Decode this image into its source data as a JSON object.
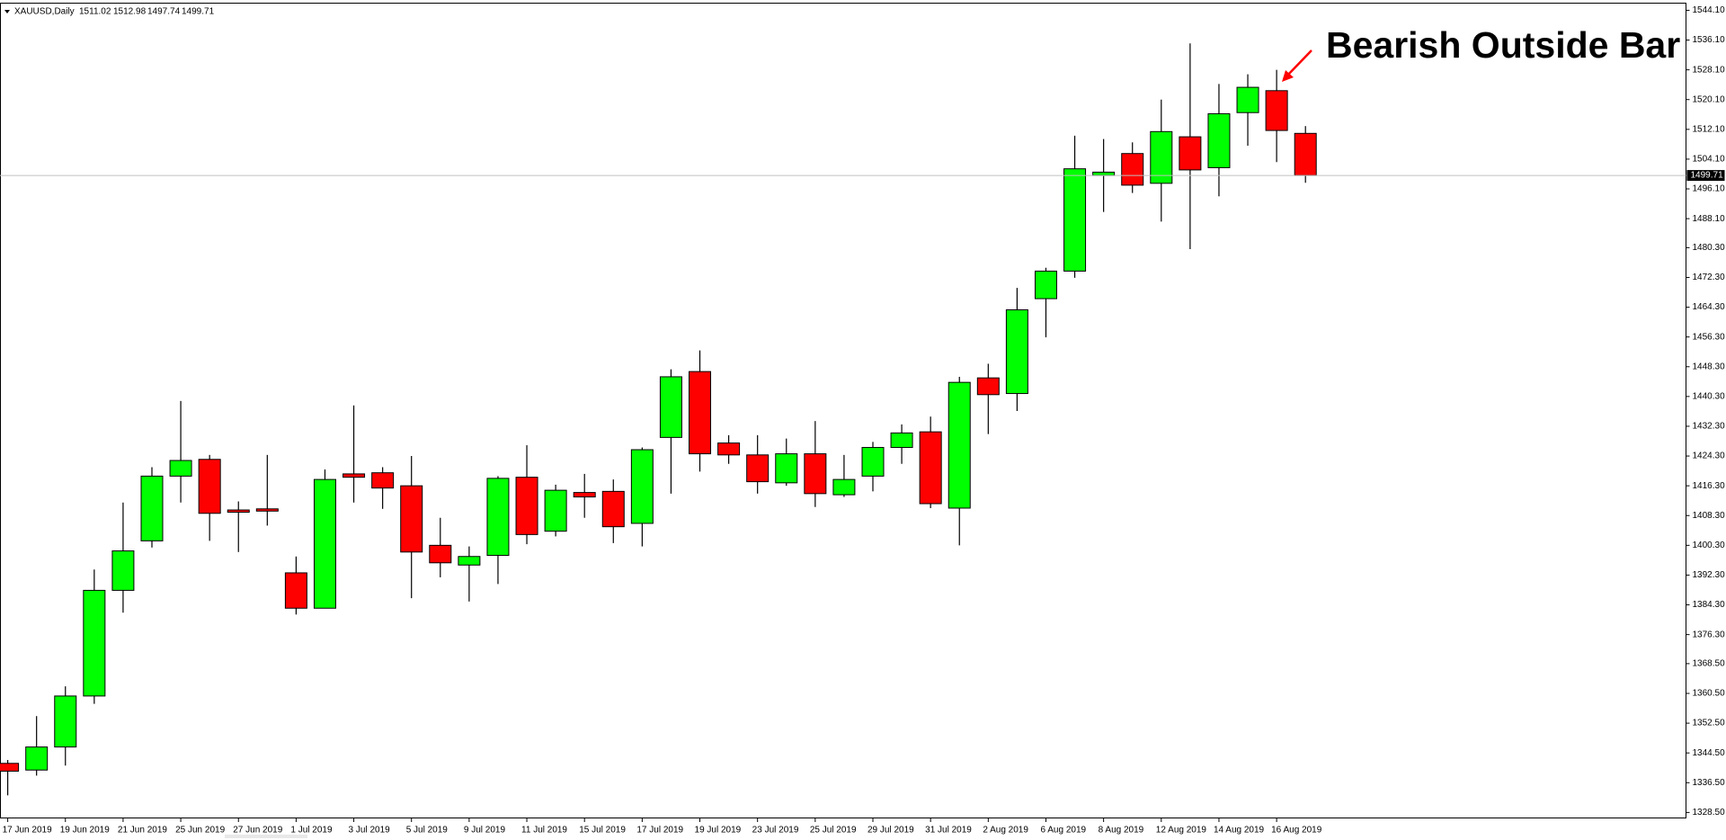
{
  "chart_data": {
    "type": "candlestick",
    "symbol": "XAUUSD,Daily",
    "annotation": "Bearish Outside Bar",
    "up_color": "#00ff00",
    "down_color": "#ff0000",
    "categories": [
      "17 Jun 2019",
      null,
      "19 Jun 2019",
      null,
      "21 Jun 2019",
      null,
      "25 Jun 2019",
      null,
      "27 Jun 2019",
      null,
      "1 Jul 2019",
      null,
      "3 Jul 2019",
      null,
      "5 Jul 2019",
      null,
      "9 Jul 2019",
      null,
      "11 Jul 2019",
      null,
      "15 Jul 2019",
      null,
      "17 Jul 2019",
      null,
      "19 Jul 2019",
      null,
      "23 Jul 2019",
      null,
      "25 Jul 2019",
      null,
      "29 Jul 2019",
      null,
      "31 Jul 2019",
      null,
      "2 Aug 2019",
      null,
      "6 Aug 2019",
      null,
      "8 Aug 2019",
      null,
      "12 Aug 2019",
      null,
      "14 Aug 2019",
      null,
      "16 Aug 2019",
      null
    ],
    "open": [
      1341.7,
      1339.9,
      1346.1,
      1359.8,
      1388.2,
      1401.5,
      1418.9,
      1423.4,
      1409.8,
      1410.1,
      1392.9,
      1383.4,
      1419.5,
      1419.8,
      1416.3,
      1400.3,
      1395.0,
      1397.6,
      1418.6,
      1404.1,
      1414.5,
      1414.8,
      1406.2,
      1429.3,
      1447.0,
      1427.8,
      1424.6,
      1417.1,
      1424.9,
      1413.9,
      1418.9,
      1426.6,
      1430.8,
      1410.3,
      1445.3,
      1441.1,
      1466.6,
      1474.0,
      1499.7,
      1505.6,
      1497.6,
      1510.1,
      1501.8,
      1516.6,
      1522.5,
      1511.02
    ],
    "high": [
      1342.6,
      1354.4,
      1362.4,
      1393.8,
      1411.8,
      1421.3,
      1439.1,
      1424.6,
      1412.1,
      1424.6,
      1397.3,
      1420.7,
      1437.9,
      1421.3,
      1424.3,
      1407.7,
      1400.0,
      1418.9,
      1427.2,
      1416.6,
      1419.5,
      1418.0,
      1426.6,
      1447.6,
      1452.7,
      1429.9,
      1429.9,
      1429.0,
      1433.7,
      1424.6,
      1428.1,
      1432.8,
      1434.9,
      1445.6,
      1449.1,
      1469.5,
      1474.9,
      1510.4,
      1509.5,
      1508.6,
      1520.1,
      1535.2,
      1524.3,
      1526.9,
      1528.1,
      1512.98
    ],
    "low": [
      1333.1,
      1338.4,
      1341.1,
      1357.7,
      1382.2,
      1399.7,
      1411.8,
      1401.5,
      1398.5,
      1405.6,
      1381.7,
      1383.4,
      1411.8,
      1410.1,
      1386.1,
      1391.7,
      1385.2,
      1389.9,
      1400.6,
      1402.7,
      1407.7,
      1400.9,
      1400.0,
      1414.2,
      1420.1,
      1422.2,
      1414.2,
      1416.3,
      1410.6,
      1413.3,
      1414.8,
      1422.2,
      1410.3,
      1400.3,
      1430.2,
      1436.4,
      1456.2,
      1472.2,
      1489.9,
      1495.0,
      1487.3,
      1479.9,
      1494.1,
      1507.7,
      1503.3,
      1497.74
    ],
    "close": [
      1339.6,
      1346.1,
      1359.8,
      1388.2,
      1398.8,
      1418.9,
      1423.1,
      1408.9,
      1409.2,
      1409.5,
      1383.4,
      1418.0,
      1418.6,
      1415.7,
      1398.5,
      1395.6,
      1397.3,
      1418.3,
      1403.2,
      1415.1,
      1413.3,
      1405.3,
      1426.0,
      1445.6,
      1424.9,
      1424.6,
      1417.4,
      1424.9,
      1414.2,
      1418.0,
      1426.6,
      1430.5,
      1411.5,
      1444.1,
      1440.8,
      1463.6,
      1474.0,
      1501.5,
      1500.6,
      1497.1,
      1511.5,
      1501.2,
      1516.3,
      1523.4,
      1511.8,
      1499.71
    ],
    "ylim": [
      1326.9,
      1545.9
    ],
    "yticks": [
      {
        "value": 1544.1,
        "label": "1544.10"
      },
      {
        "value": 1536.1,
        "label": "1536.10"
      },
      {
        "value": 1528.1,
        "label": "1528.10"
      },
      {
        "value": 1520.1,
        "label": "1520.10"
      },
      {
        "value": 1512.1,
        "label": "1512.10"
      },
      {
        "value": 1504.1,
        "label": "1504.10"
      },
      {
        "value": 1496.1,
        "label": "1496.10"
      },
      {
        "value": 1488.1,
        "label": "1488.10"
      },
      {
        "value": 1480.3,
        "label": "1480.30"
      },
      {
        "value": 1472.3,
        "label": "1472.30"
      },
      {
        "value": 1464.3,
        "label": "1464.30"
      },
      {
        "value": 1456.3,
        "label": "1456.30"
      },
      {
        "value": 1448.3,
        "label": "1448.30"
      },
      {
        "value": 1440.3,
        "label": "1440.30"
      },
      {
        "value": 1432.3,
        "label": "1432.30"
      },
      {
        "value": 1424.3,
        "label": "1424.30"
      },
      {
        "value": 1416.3,
        "label": "1416.30"
      },
      {
        "value": 1408.3,
        "label": "1408.30"
      },
      {
        "value": 1400.3,
        "label": "1400.30"
      },
      {
        "value": 1392.3,
        "label": "1392.30"
      },
      {
        "value": 1384.3,
        "label": "1384.30"
      },
      {
        "value": 1376.3,
        "label": "1376.30"
      },
      {
        "value": 1368.5,
        "label": "1368.50"
      },
      {
        "value": 1360.5,
        "label": "1360.50"
      },
      {
        "value": 1352.5,
        "label": "1352.50"
      },
      {
        "value": 1344.5,
        "label": "1344.50"
      },
      {
        "value": 1336.5,
        "label": "1336.50"
      },
      {
        "value": 1328.5,
        "label": "1328.50"
      }
    ]
  }
}
